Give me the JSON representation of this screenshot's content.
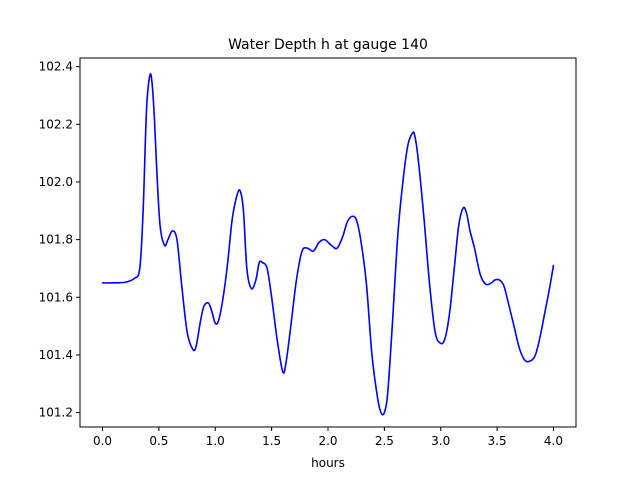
{
  "chart_data": {
    "type": "line",
    "title": "Water Depth h at gauge 140",
    "xlabel": "hours",
    "ylabel": "",
    "xlim": [
      -0.2,
      4.2
    ],
    "ylim": [
      101.15,
      102.43
    ],
    "x_ticks": [
      0.0,
      0.5,
      1.0,
      1.5,
      2.0,
      2.5,
      3.0,
      3.5,
      4.0
    ],
    "x_tick_labels": [
      "0.0",
      "0.5",
      "1.0",
      "1.5",
      "2.0",
      "2.5",
      "3.0",
      "3.5",
      "4.0"
    ],
    "y_ticks": [
      101.2,
      101.4,
      101.6,
      101.8,
      102.0,
      102.2,
      102.4
    ],
    "y_tick_labels": [
      "101.2",
      "101.4",
      "101.6",
      "101.8",
      "102.0",
      "102.2",
      "102.4"
    ],
    "grid": false,
    "legend": "none",
    "series": [
      {
        "color": "#0000ff",
        "x": [
          0.0,
          0.1,
          0.2,
          0.28,
          0.33,
          0.36,
          0.39,
          0.42,
          0.44,
          0.46,
          0.48,
          0.51,
          0.55,
          0.58,
          0.62,
          0.66,
          0.7,
          0.75,
          0.8,
          0.83,
          0.87,
          0.9,
          0.94,
          0.97,
          1.0,
          1.03,
          1.07,
          1.11,
          1.15,
          1.19,
          1.22,
          1.25,
          1.28,
          1.32,
          1.36,
          1.39,
          1.42,
          1.46,
          1.5,
          1.55,
          1.6,
          1.63,
          1.67,
          1.72,
          1.77,
          1.82,
          1.87,
          1.92,
          1.97,
          2.03,
          2.08,
          2.13,
          2.17,
          2.21,
          2.25,
          2.29,
          2.34,
          2.39,
          2.44,
          2.47,
          2.5,
          2.53,
          2.57,
          2.62,
          2.67,
          2.71,
          2.75,
          2.77,
          2.8,
          2.85,
          2.9,
          2.95,
          3.0,
          3.04,
          3.08,
          3.12,
          3.16,
          3.2,
          3.23,
          3.26,
          3.3,
          3.35,
          3.4,
          3.45,
          3.48,
          3.52,
          3.56,
          3.6,
          3.65,
          3.7,
          3.75,
          3.8,
          3.84,
          3.88,
          3.92,
          3.96,
          4.0
        ],
        "y": [
          101.65,
          101.65,
          101.652,
          101.665,
          101.7,
          101.9,
          102.25,
          102.37,
          102.34,
          102.22,
          102.05,
          101.85,
          101.78,
          101.8,
          101.83,
          101.8,
          101.65,
          101.48,
          101.42,
          101.43,
          101.52,
          101.57,
          101.58,
          101.55,
          101.51,
          101.52,
          101.6,
          101.72,
          101.87,
          101.95,
          101.97,
          101.9,
          101.7,
          101.63,
          101.66,
          101.72,
          101.72,
          101.7,
          101.6,
          101.45,
          101.34,
          101.38,
          101.5,
          101.66,
          101.76,
          101.77,
          101.76,
          101.79,
          101.8,
          101.78,
          101.77,
          101.81,
          101.86,
          101.88,
          101.87,
          101.8,
          101.65,
          101.4,
          101.25,
          101.2,
          101.2,
          101.27,
          101.5,
          101.82,
          102.02,
          102.13,
          102.17,
          102.16,
          102.08,
          101.88,
          101.65,
          101.48,
          101.44,
          101.46,
          101.55,
          101.7,
          101.85,
          101.91,
          101.89,
          101.83,
          101.77,
          101.68,
          101.645,
          101.65,
          101.66,
          101.66,
          101.64,
          101.58,
          101.5,
          101.42,
          101.38,
          101.38,
          101.4,
          101.46,
          101.54,
          101.62,
          101.71
        ]
      }
    ]
  }
}
